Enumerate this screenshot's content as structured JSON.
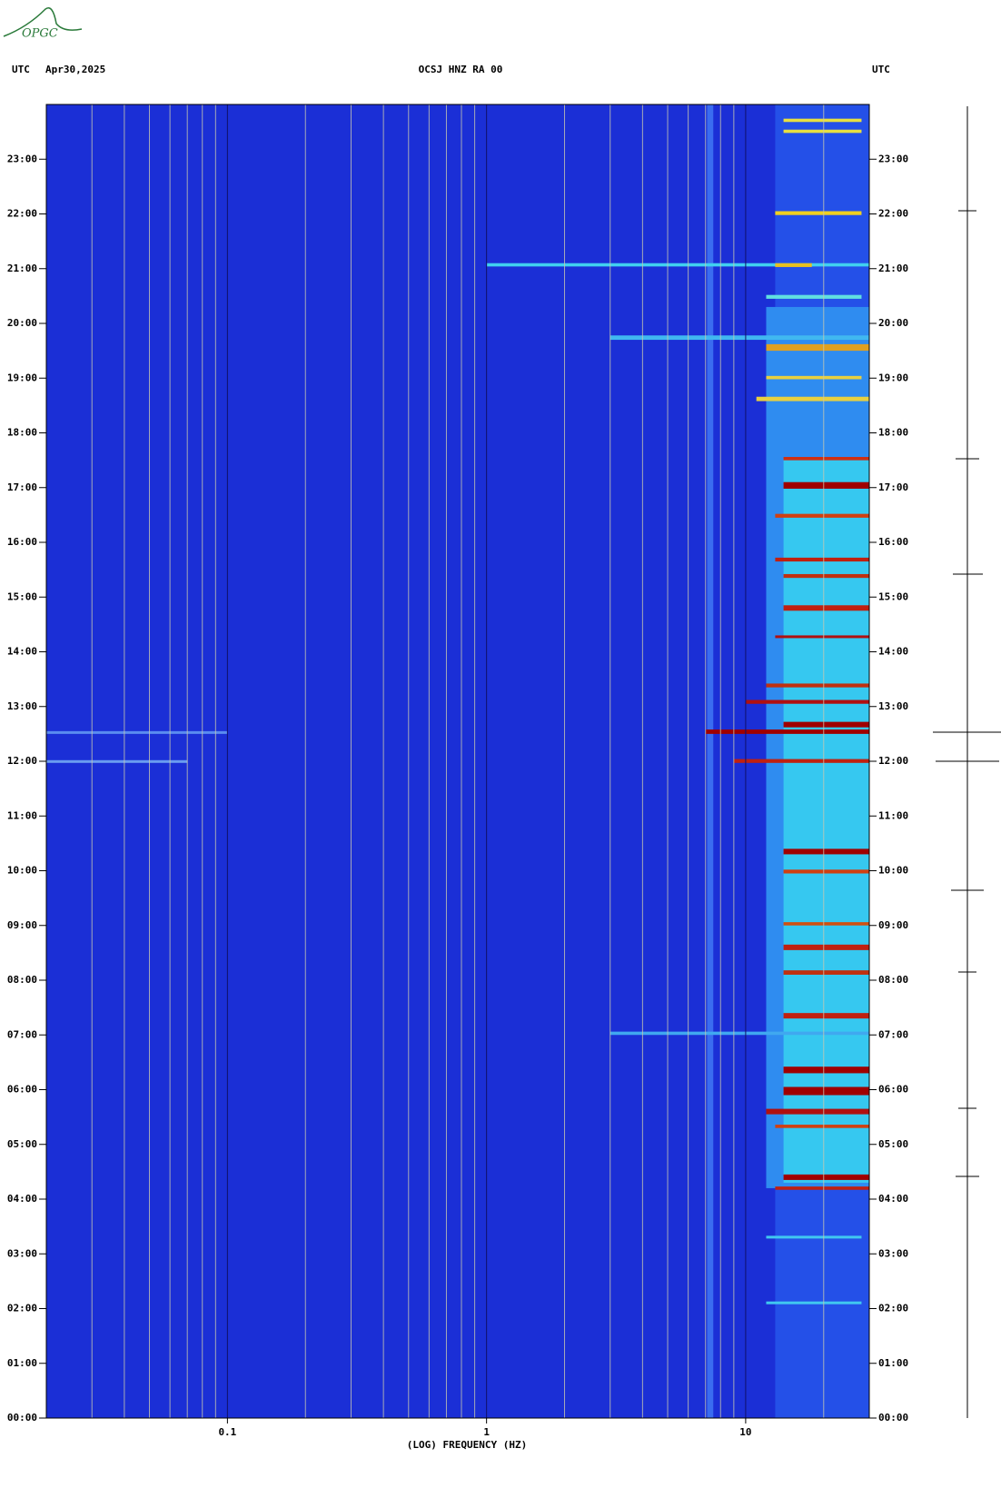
{
  "logo": "OPGC",
  "chart_data": {
    "type": "spectrogram",
    "title": "OCSJ HNZ RA 00",
    "date": "Apr30,2025",
    "left_timezone": "UTC",
    "right_timezone": "UTC",
    "x_label": "(LOG) FREQUENCY (HZ)",
    "xscale": "log",
    "xlim": [
      0.02,
      30
    ],
    "xticks": [
      0.1,
      1,
      10
    ],
    "xgrid_minor": [
      0.03,
      0.04,
      0.05,
      0.06,
      0.07,
      0.08,
      0.09,
      0.2,
      0.3,
      0.4,
      0.5,
      0.6,
      0.7,
      0.8,
      0.9,
      2,
      3,
      4,
      5,
      6,
      7,
      8,
      9,
      20
    ],
    "ylim": [
      0,
      24
    ],
    "yticks": [
      {
        "value": 0,
        "label": "00:00"
      },
      {
        "value": 1,
        "label": "01:00"
      },
      {
        "value": 2,
        "label": "02:00"
      },
      {
        "value": 3,
        "label": "03:00"
      },
      {
        "value": 4,
        "label": "04:00"
      },
      {
        "value": 5,
        "label": "05:00"
      },
      {
        "value": 6,
        "label": "06:00"
      },
      {
        "value": 7,
        "label": "07:00"
      },
      {
        "value": 8,
        "label": "08:00"
      },
      {
        "value": 9,
        "label": "09:00"
      },
      {
        "value": 10,
        "label": "10:00"
      },
      {
        "value": 11,
        "label": "11:00"
      },
      {
        "value": 12,
        "label": "12:00"
      },
      {
        "value": 13,
        "label": "13:00"
      },
      {
        "value": 14,
        "label": "14:00"
      },
      {
        "value": 15,
        "label": "15:00"
      },
      {
        "value": 16,
        "label": "16:00"
      },
      {
        "value": 17,
        "label": "17:00"
      },
      {
        "value": 18,
        "label": "18:00"
      },
      {
        "value": 19,
        "label": "19:00"
      },
      {
        "value": 20,
        "label": "20:00"
      },
      {
        "value": 21,
        "label": "21:00"
      },
      {
        "value": 22,
        "label": "22:00"
      },
      {
        "value": 23,
        "label": "23:00"
      }
    ],
    "background_color": "#1b2fd6",
    "events": [
      {
        "t0": 0,
        "t1": 24,
        "f0": 13,
        "f1": 30,
        "color": "#2450e8"
      },
      {
        "t0": 4.2,
        "t1": 20.3,
        "f0": 12,
        "f1": 30,
        "color": "#2f8cf0"
      },
      {
        "t0": 4.3,
        "t1": 17.5,
        "f0": 14,
        "f1": 30,
        "color": "#36c8f0"
      },
      {
        "t0": 0,
        "t1": 24,
        "f0": 7.1,
        "f1": 7.5,
        "color": "#3a6cf0"
      },
      {
        "t0": 23.68,
        "t1": 23.74,
        "f0": 14,
        "f1": 28,
        "color": "#e8e040"
      },
      {
        "t0": 23.48,
        "t1": 23.54,
        "f0": 14,
        "f1": 28,
        "color": "#e8e040"
      },
      {
        "t0": 21.98,
        "t1": 22.05,
        "f0": 13,
        "f1": 28,
        "color": "#f0d020"
      },
      {
        "t0": 21.04,
        "t1": 21.1,
        "f0": 1,
        "f1": 30,
        "color": "#40d0f0"
      },
      {
        "t0": 21.03,
        "t1": 21.1,
        "f0": 13,
        "f1": 18,
        "color": "#e8c020"
      },
      {
        "t0": 20.45,
        "t1": 20.52,
        "f0": 12,
        "f1": 28,
        "color": "#60e0e0"
      },
      {
        "t0": 19.7,
        "t1": 19.78,
        "f0": 3,
        "f1": 30,
        "color": "#40b8f0"
      },
      {
        "t0": 19.5,
        "t1": 19.62,
        "f0": 12,
        "f1": 30,
        "color": "#e0a020"
      },
      {
        "t0": 18.98,
        "t1": 19.04,
        "f0": 12,
        "f1": 28,
        "color": "#e8d040"
      },
      {
        "t0": 18.58,
        "t1": 18.66,
        "f0": 11,
        "f1": 30,
        "color": "#e8d040"
      },
      {
        "t0": 17.5,
        "t1": 17.56,
        "f0": 14,
        "f1": 30,
        "color": "#d03010"
      },
      {
        "t0": 16.98,
        "t1": 17.1,
        "f0": 14,
        "f1": 30,
        "color": "#a00000"
      },
      {
        "t0": 16.45,
        "t1": 16.52,
        "f0": 13,
        "f1": 30,
        "color": "#d04010"
      },
      {
        "t0": 15.65,
        "t1": 15.72,
        "f0": 13,
        "f1": 30,
        "color": "#c02010"
      },
      {
        "t0": 15.35,
        "t1": 15.42,
        "f0": 14,
        "f1": 30,
        "color": "#c03010"
      },
      {
        "t0": 14.75,
        "t1": 14.85,
        "f0": 14,
        "f1": 30,
        "color": "#c02010"
      },
      {
        "t0": 14.25,
        "t1": 14.3,
        "f0": 13,
        "f1": 30,
        "color": "#b01010"
      },
      {
        "t0": 13.35,
        "t1": 13.42,
        "f0": 12,
        "f1": 30,
        "color": "#c03010"
      },
      {
        "t0": 13.05,
        "t1": 13.12,
        "f0": 10,
        "f1": 30,
        "color": "#b01010"
      },
      {
        "t0": 12.62,
        "t1": 12.72,
        "f0": 14,
        "f1": 30,
        "color": "#a00000"
      },
      {
        "t0": 12.5,
        "t1": 12.58,
        "f0": 7,
        "f1": 30,
        "color": "#a00000"
      },
      {
        "t0": 12.5,
        "t1": 12.55,
        "f0": 0.02,
        "f1": 0.1,
        "color": "#5a8cf0"
      },
      {
        "t0": 11.97,
        "t1": 12.04,
        "f0": 9,
        "f1": 30,
        "color": "#c02010"
      },
      {
        "t0": 11.97,
        "t1": 12.02,
        "f0": 0.02,
        "f1": 0.07,
        "color": "#6a9cf0"
      },
      {
        "t0": 10.3,
        "t1": 10.4,
        "f0": 14,
        "f1": 30,
        "color": "#a00000"
      },
      {
        "t0": 9.95,
        "t1": 10.02,
        "f0": 14,
        "f1": 30,
        "color": "#d04010"
      },
      {
        "t0": 9.0,
        "t1": 9.06,
        "f0": 14,
        "f1": 30,
        "color": "#d05010"
      },
      {
        "t0": 8.55,
        "t1": 8.65,
        "f0": 14,
        "f1": 30,
        "color": "#c02010"
      },
      {
        "t0": 8.1,
        "t1": 8.18,
        "f0": 14,
        "f1": 30,
        "color": "#c03010"
      },
      {
        "t0": 7.3,
        "t1": 7.4,
        "f0": 14,
        "f1": 30,
        "color": "#c02010"
      },
      {
        "t0": 7.0,
        "t1": 7.06,
        "f0": 3,
        "f1": 30,
        "color": "#40a8f0"
      },
      {
        "t0": 6.3,
        "t1": 6.42,
        "f0": 14,
        "f1": 30,
        "color": "#a00000"
      },
      {
        "t0": 5.9,
        "t1": 6.05,
        "f0": 14,
        "f1": 30,
        "color": "#a00000"
      },
      {
        "t0": 5.55,
        "t1": 5.65,
        "f0": 12,
        "f1": 30,
        "color": "#b01010"
      },
      {
        "t0": 5.3,
        "t1": 5.36,
        "f0": 13,
        "f1": 30,
        "color": "#d04010"
      },
      {
        "t0": 4.35,
        "t1": 4.45,
        "f0": 14,
        "f1": 30,
        "color": "#a00000"
      },
      {
        "t0": 4.17,
        "t1": 4.23,
        "f0": 13,
        "f1": 30,
        "color": "#c02010"
      },
      {
        "t0": 3.28,
        "t1": 3.33,
        "f0": 12,
        "f1": 28,
        "color": "#40c8f0"
      },
      {
        "t0": 2.08,
        "t1": 2.13,
        "f0": 12,
        "f1": 28,
        "color": "#40c8f0"
      }
    ]
  }
}
